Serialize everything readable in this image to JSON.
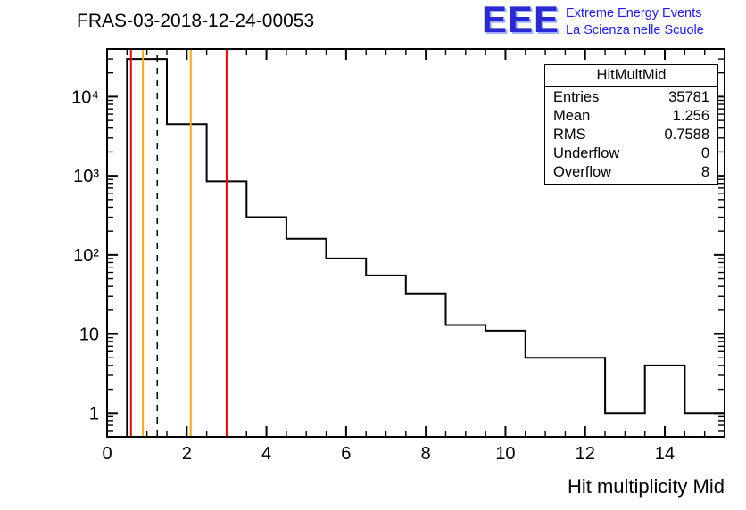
{
  "title": "FRAS-03-2018-12-24-00053",
  "logo": {
    "text": "EEE",
    "line1": "Extreme Energy Events",
    "line2": "La Scienza nelle Scuole",
    "color": "#1a1aff"
  },
  "stats": {
    "header": "HitMultMid",
    "rows": [
      {
        "label": "Entries",
        "value": "35781"
      },
      {
        "label": "Mean",
        "value": "1.256"
      },
      {
        "label": "RMS",
        "value": "0.7588"
      },
      {
        "label": "Underflow",
        "value": "0"
      },
      {
        "label": "Overflow",
        "value": "8"
      }
    ]
  },
  "xlabel": "Hit multiplicity Mid",
  "chart_data": {
    "type": "bar",
    "subtype": "step-histogram",
    "title": "FRAS-03-2018-12-24-00053",
    "xlabel": "Hit multiplicity Mid",
    "ylabel": "",
    "y_scale": "log",
    "grid": false,
    "legend": false,
    "xlim": [
      0,
      15.5
    ],
    "ylim": [
      0.5,
      40000
    ],
    "bin_edges": [
      0,
      0.5,
      1.5,
      2.5,
      3.5,
      4.5,
      5.5,
      6.5,
      7.5,
      8.5,
      9.5,
      10.5,
      11.5,
      12.5,
      13.5,
      14.5,
      15.5
    ],
    "counts": [
      0,
      30000,
      4500,
      850,
      300,
      160,
      90,
      55,
      32,
      13,
      11,
      5,
      5,
      1,
      4,
      1
    ],
    "line_color": "#000000",
    "x_ticks": [
      0,
      2,
      4,
      6,
      8,
      10,
      12,
      14
    ],
    "x_minor_step": 0.5,
    "y_ticks": [
      1,
      10,
      100,
      1000,
      10000
    ],
    "y_tick_labels": [
      "1",
      "10",
      "10²",
      "10³",
      "10⁴"
    ],
    "vlines": [
      {
        "x": 0.6,
        "color": "#ff0000",
        "style": "solid"
      },
      {
        "x": 0.9,
        "color": "#ffaa00",
        "style": "solid"
      },
      {
        "x": 1.26,
        "color": "#000000",
        "style": "dashed"
      },
      {
        "x": 2.1,
        "color": "#ffaa00",
        "style": "solid"
      },
      {
        "x": 3.0,
        "color": "#ff0000",
        "style": "solid"
      }
    ]
  }
}
